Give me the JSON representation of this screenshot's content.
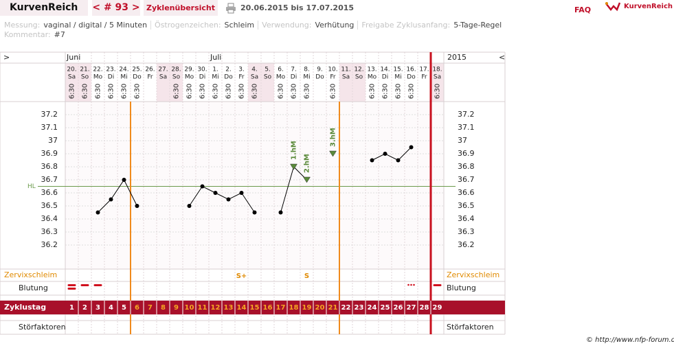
{
  "header": {
    "brand": "KurvenReich",
    "cycle_nav": "< # 93 >",
    "overview": "Zyklenübersicht",
    "range": "20.06.2015 bis 17.07.2015",
    "faq": "FAQ",
    "logo": "KurvenReich"
  },
  "info": {
    "fields": [
      {
        "label": "Messung:",
        "value": "vaginal / digital / 5 Minuten"
      },
      {
        "label": "Östrogenzeichen:",
        "value": "Schleim"
      },
      {
        "label": "Verwendung:",
        "value": "Verhütung"
      },
      {
        "label": "Freigabe Zyklusanfang:",
        "value": "5-Tage-Regel"
      }
    ],
    "comment_label": "Kommentar:",
    "comment": "#7"
  },
  "chart_data": {
    "type": "line",
    "nav_left": ">",
    "nav_right": "<",
    "year": "2015",
    "months": [
      "Juni",
      null,
      null,
      null,
      null,
      null,
      null,
      null,
      null,
      null,
      null,
      "Juli",
      null,
      null,
      null,
      null,
      null,
      null,
      null,
      null,
      null,
      null,
      null,
      null,
      null,
      null,
      null,
      null,
      null
    ],
    "categories": [
      "20.",
      "21.",
      "22.",
      "23.",
      "24.",
      "25.",
      "26.",
      "27.",
      "28.",
      "29.",
      "30.",
      "1.",
      "2.",
      "3.",
      "4.",
      "5.",
      "6.",
      "7.",
      "8.",
      "9.",
      "10.",
      "11.",
      "12.",
      "13.",
      "14.",
      "15.",
      "16.",
      "17.",
      "18."
    ],
    "weekdays": [
      "Sa",
      "So",
      "Mo",
      "Di",
      "Mi",
      "Do",
      "Fr",
      "Sa",
      "So",
      "Mo",
      "Di",
      "Mi",
      "Do",
      "Fr",
      "Sa",
      "So",
      "Mo",
      "Di",
      "Mi",
      "Do",
      "Fr",
      "Sa",
      "So",
      "Mo",
      "Di",
      "Mi",
      "Do",
      "Fr",
      "Sa"
    ],
    "times": [
      "6:30",
      "6:30",
      "6:30",
      "6:30",
      "6:30",
      "6:30",
      null,
      null,
      "6:30",
      "6:30",
      "6:30",
      "6:30",
      "6:30",
      "6:30",
      "6:30",
      null,
      "6:30",
      "6:30",
      "6:30",
      null,
      "6:30",
      null,
      null,
      "6:30",
      "6:30",
      "6:30",
      "6:30",
      null,
      "6:30"
    ],
    "values": [
      null,
      null,
      36.45,
      36.55,
      36.7,
      36.5,
      null,
      null,
      null,
      36.5,
      36.65,
      36.6,
      36.55,
      36.6,
      36.45,
      null,
      36.45,
      36.8,
      36.7,
      null,
      36.9,
      null,
      null,
      36.85,
      36.9,
      36.85,
      36.95,
      null,
      null
    ],
    "color": "#000000",
    "higher_marks": [
      null,
      null,
      null,
      null,
      null,
      null,
      null,
      null,
      null,
      null,
      null,
      null,
      null,
      null,
      null,
      null,
      null,
      "1.hM",
      "2.hM",
      null,
      "3.hM",
      null,
      null,
      null,
      null,
      null,
      null,
      null,
      null
    ],
    "higher_mark_color": "#5a8a3a",
    "cover_line": {
      "label": "HL",
      "value": 36.65,
      "color": "#6a9a4a"
    },
    "ylim": [
      36.1,
      37.3
    ],
    "yticks": [
      36.2,
      36.3,
      36.4,
      36.5,
      36.6,
      36.7,
      36.8,
      36.9,
      37,
      37.1,
      37.2
    ],
    "grid": true,
    "cervix_label": "Zervixschleim",
    "cervix": [
      null,
      null,
      null,
      null,
      null,
      null,
      null,
      null,
      null,
      null,
      null,
      null,
      null,
      "S+",
      null,
      null,
      null,
      null,
      "S",
      null,
      null,
      null,
      null,
      null,
      null,
      null,
      null,
      null,
      null
    ],
    "bleeding_label": "Blutung",
    "bleeding": [
      "strong",
      "medium",
      "medium",
      null,
      null,
      null,
      null,
      null,
      null,
      null,
      null,
      null,
      null,
      null,
      null,
      null,
      null,
      null,
      null,
      null,
      null,
      null,
      null,
      null,
      null,
      null,
      "spotting",
      null,
      "medium"
    ],
    "cycle_day_label": "Zyklustag",
    "cycle_days": [
      1,
      2,
      3,
      4,
      5,
      6,
      7,
      8,
      9,
      10,
      11,
      12,
      13,
      14,
      15,
      16,
      17,
      18,
      19,
      20,
      21,
      22,
      23,
      24,
      25,
      26,
      27,
      28,
      29
    ],
    "fertile_window": [
      6,
      21
    ],
    "disturbance_label": "Störfaktoren",
    "copyright": "© http://www.nfp-forum.de"
  }
}
